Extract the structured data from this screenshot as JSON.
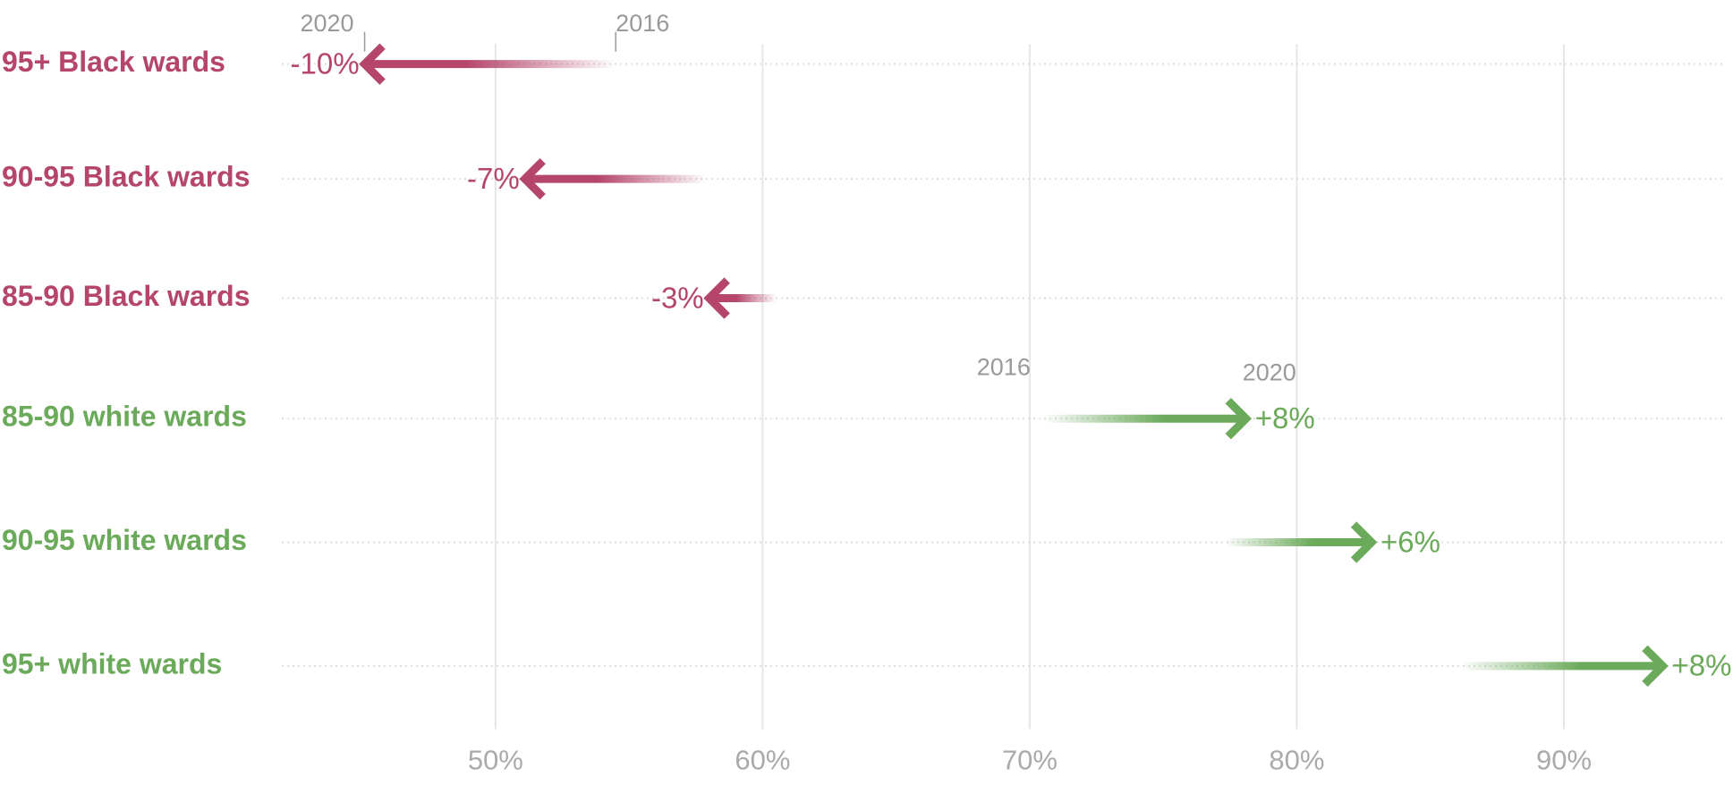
{
  "chart_data": {
    "type": "arrow",
    "categories": [
      "95+ Black wards",
      "90-95 Black wards",
      "85-90 Black wards",
      "85-90 white wards",
      "90-95 white wards",
      "95+ white wards"
    ],
    "series": [
      {
        "name": "2016",
        "values": [
          54.5,
          57.9,
          60.5,
          70.5,
          77.3,
          86.1
        ]
      },
      {
        "name": "2020",
        "values": [
          45.1,
          51.1,
          58.0,
          78.1,
          82.8,
          93.7
        ]
      }
    ],
    "changes": [
      -10,
      -7,
      -3,
      8,
      6,
      8
    ],
    "change_labels": [
      "-10%",
      "-7%",
      "-3%",
      "+8%",
      "+6%",
      "+8%"
    ],
    "decline_color": "#b5456b",
    "increase_color": "#6aaa5a",
    "xlim": [
      42,
      96
    ],
    "xticks": [
      {
        "value": 50,
        "label": "50%"
      },
      {
        "value": 60,
        "label": "60%"
      },
      {
        "value": 70,
        "label": "70%"
      },
      {
        "value": 80,
        "label": "80%"
      },
      {
        "value": 90,
        "label": "90%"
      }
    ],
    "grid": true
  }
}
